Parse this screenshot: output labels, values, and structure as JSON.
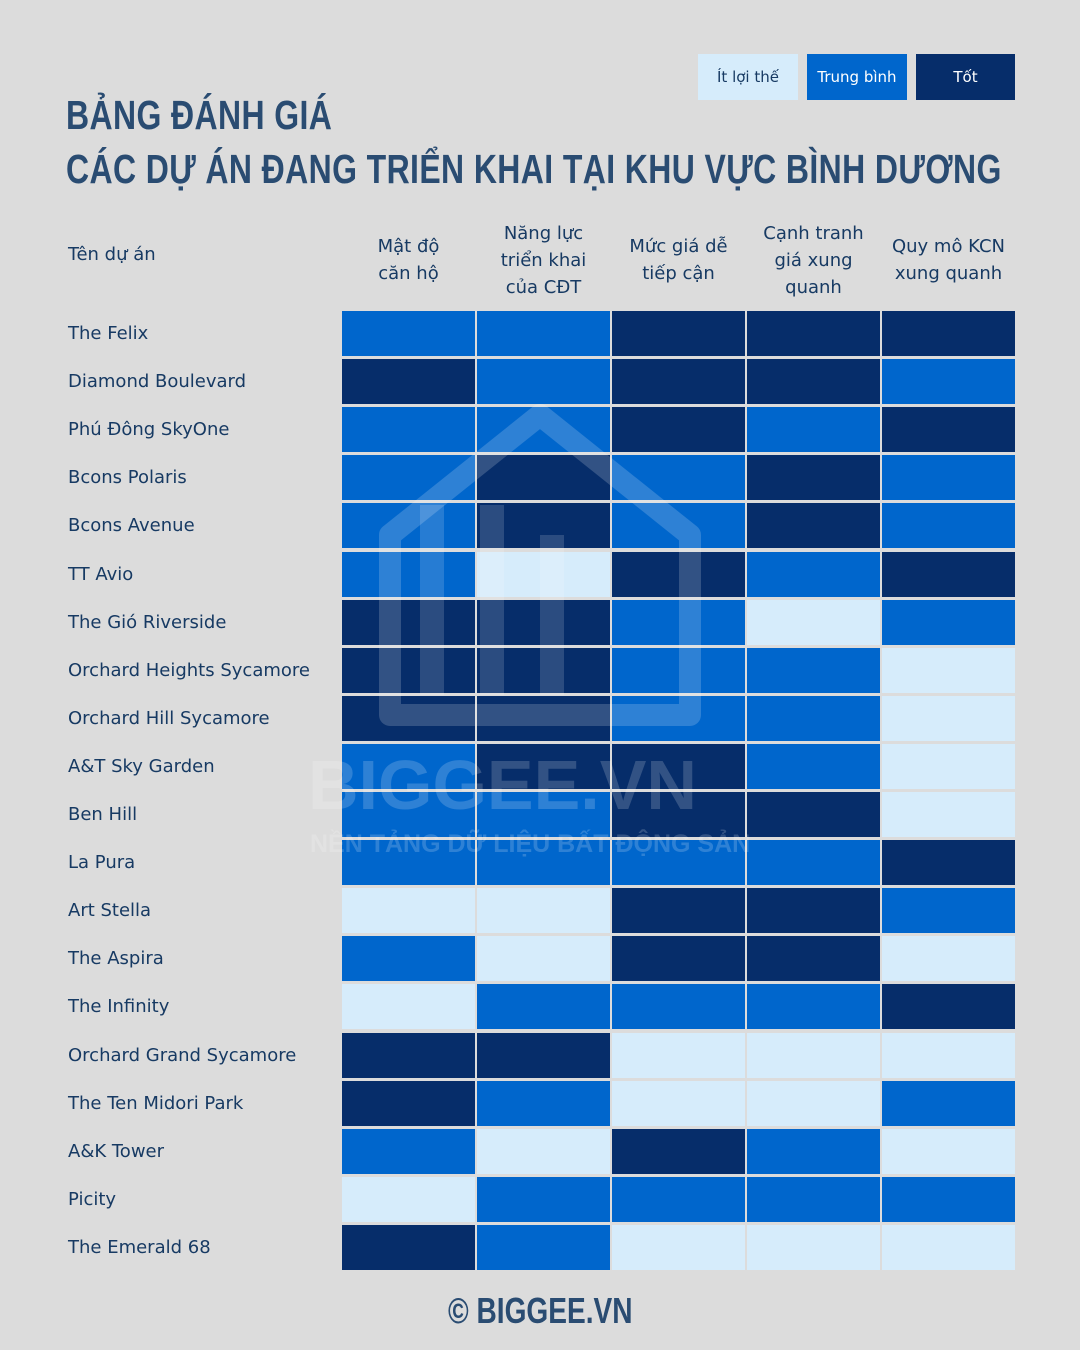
{
  "title": {
    "line1": "BẢNG ĐÁNH GIÁ",
    "line2": "CÁC DỰ ÁN ĐANG TRIỂN KHAI  TẠI KHU VỰC BÌNH DƯƠNG"
  },
  "legend": [
    {
      "label": "Ít lợi thế",
      "level": 1,
      "color": "#d6ecfb",
      "text_color": "#173a63"
    },
    {
      "label": "Trung bình",
      "level": 2,
      "color": "#0066cc",
      "text_color": "#ffffff"
    },
    {
      "label": "Tốt",
      "level": 3,
      "color": "#062d6a",
      "text_color": "#ffffff"
    }
  ],
  "colors": {
    "1": "#d6ecfb",
    "2": "#0066cc",
    "3": "#062d6a"
  },
  "chart_data": {
    "type": "heatmap",
    "title": "BẢNG ĐÁNH GIÁ CÁC DỰ ÁN ĐANG TRIỂN KHAI TẠI KHU VỰC BÌNH DƯƠNG",
    "row_header": "Tên dự án",
    "columns": [
      "Mật độ\ncăn hộ",
      "Năng lực\ntriển khai\ncủa  CĐT",
      "Mức giá dễ\ntiếp cận",
      "Cạnh tranh\ngiá xung\nquanh",
      "Quy mô KCN\nxung quanh"
    ],
    "scale": {
      "1": "Ít lợi thế",
      "2": "Trung bình",
      "3": "Tốt"
    },
    "rows": [
      {
        "name": "The Felix",
        "values": [
          2,
          2,
          3,
          3,
          3
        ]
      },
      {
        "name": "Diamond Boulevard",
        "values": [
          3,
          2,
          3,
          3,
          2
        ]
      },
      {
        "name": "Phú Đông SkyOne",
        "values": [
          2,
          2,
          3,
          2,
          3
        ]
      },
      {
        "name": "Bcons Polaris",
        "values": [
          2,
          3,
          2,
          3,
          2
        ]
      },
      {
        "name": "Bcons Avenue",
        "values": [
          2,
          3,
          2,
          3,
          2
        ]
      },
      {
        "name": "TT Avio",
        "values": [
          2,
          1,
          3,
          2,
          3
        ]
      },
      {
        "name": "The Gió Riverside",
        "values": [
          3,
          3,
          2,
          1,
          2
        ]
      },
      {
        "name": "Orchard Heights Sycamore",
        "values": [
          3,
          3,
          2,
          2,
          1
        ]
      },
      {
        "name": "Orchard Hill Sycamore",
        "values": [
          3,
          3,
          2,
          2,
          1
        ]
      },
      {
        "name": "A&T Sky Garden",
        "values": [
          2,
          3,
          3,
          2,
          1
        ]
      },
      {
        "name": "Ben Hill",
        "values": [
          2,
          2,
          3,
          3,
          1
        ]
      },
      {
        "name": "La Pura",
        "values": [
          2,
          2,
          2,
          2,
          3
        ]
      },
      {
        "name": "Art Stella",
        "values": [
          1,
          1,
          3,
          3,
          2
        ]
      },
      {
        "name": "The Aspira",
        "values": [
          2,
          1,
          3,
          3,
          1
        ]
      },
      {
        "name": "The Infinity",
        "values": [
          1,
          2,
          2,
          2,
          3
        ]
      },
      {
        "name": "Orchard Grand Sycamore",
        "values": [
          3,
          3,
          1,
          1,
          1
        ]
      },
      {
        "name": "The Ten Midori Park",
        "values": [
          3,
          2,
          1,
          1,
          2
        ]
      },
      {
        "name": "A&K Tower",
        "values": [
          2,
          1,
          3,
          2,
          1
        ]
      },
      {
        "name": "Picity",
        "values": [
          1,
          2,
          2,
          2,
          2
        ]
      },
      {
        "name": "The Emerald 68",
        "values": [
          3,
          2,
          1,
          1,
          1
        ]
      }
    ]
  },
  "watermark": {
    "brand": "BIGGEE.VN",
    "tagline": "NỀN TẢNG DỮ LIỆU BẤT ĐỘNG SẢN"
  },
  "footer": "© BIGGEE.VN"
}
